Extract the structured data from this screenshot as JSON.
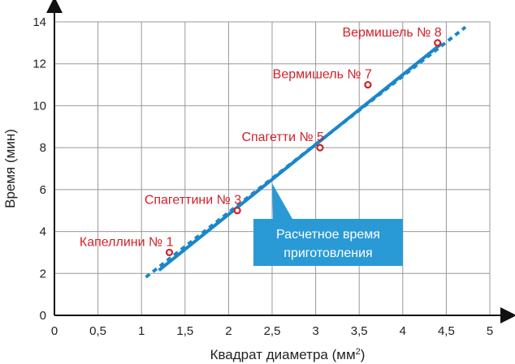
{
  "chart_data": {
    "type": "scatter",
    "xlabel": "Квадрат диаметра (мм",
    "xlabel_sup": "2",
    "xlabel_end": ")",
    "ylabel": "Время (мин)",
    "xlim": [
      0,
      5
    ],
    "ylim": [
      0,
      14
    ],
    "grid": true,
    "x_ticks": [
      "0",
      "0,5",
      "1",
      "1,5",
      "2",
      "2,5",
      "3",
      "3,5",
      "4",
      "4,5",
      "5"
    ],
    "y_ticks": [
      "0",
      "2",
      "4",
      "6",
      "8",
      "10",
      "12",
      "14"
    ],
    "points": [
      {
        "label": "Капеллини № 1",
        "x": 1.32,
        "y": 3.0
      },
      {
        "label": "Спагеттини № 3",
        "x": 2.1,
        "y": 5.0
      },
      {
        "label": "Спагетти № 5",
        "x": 3.05,
        "y": 8.0
      },
      {
        "label": "Вермишель № 7",
        "x": 3.6,
        "y": 11.0
      },
      {
        "label": "Вермишель № 8",
        "x": 4.4,
        "y": 13.0
      }
    ],
    "fit_line": {
      "solid_from": [
        1.2,
        2.15
      ],
      "solid_to": [
        4.45,
        12.98
      ],
      "dash_start": [
        1.05,
        1.82
      ],
      "dash_end": [
        4.72,
        13.75
      ]
    },
    "callout": {
      "lines": [
        "Расчетное время",
        "приготовления"
      ],
      "anchor": [
        2.5,
        6.3
      ]
    },
    "colors": {
      "line": "#1a87c9",
      "point": "#d0212a",
      "label": "#d0212a",
      "callout_bg": "#2a9ad6",
      "grid": "#999999",
      "axis": "#111111"
    }
  }
}
